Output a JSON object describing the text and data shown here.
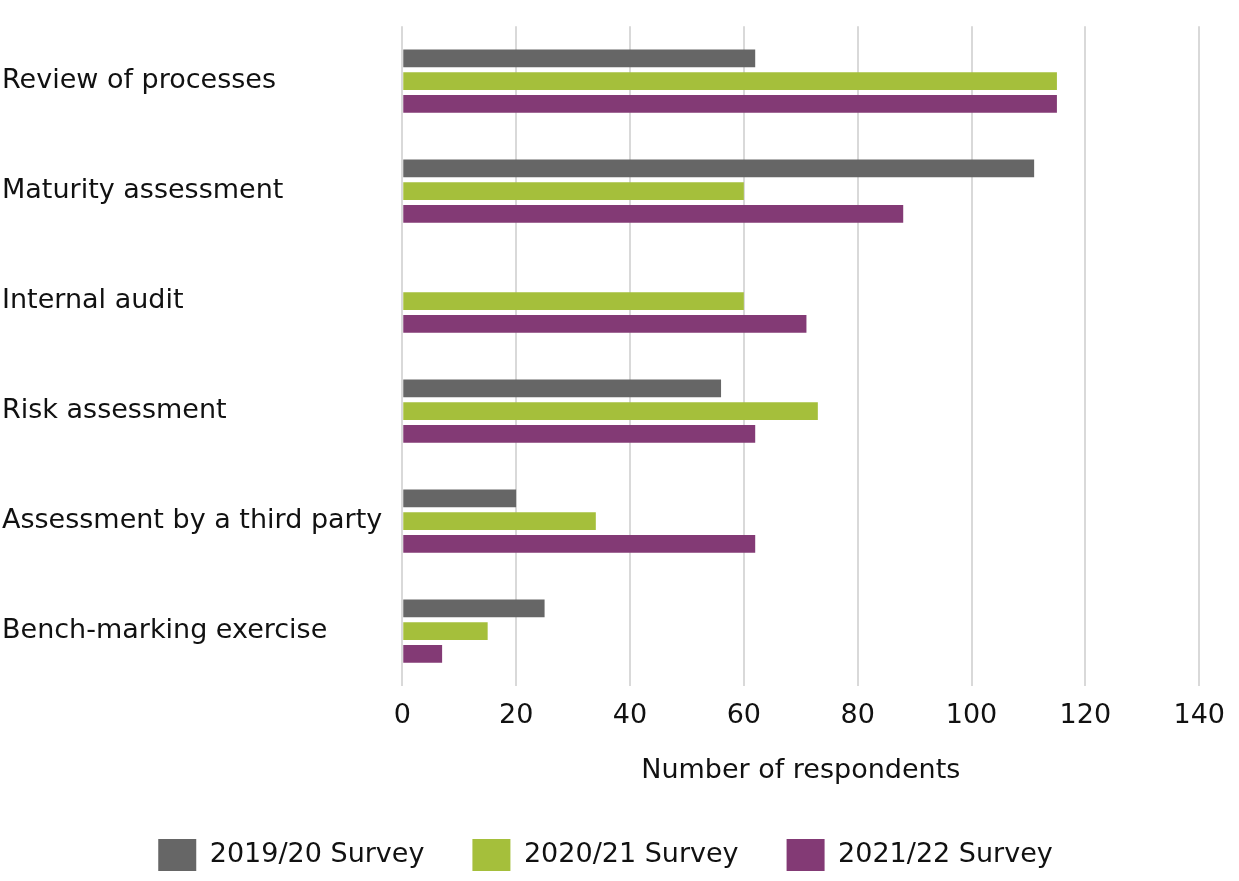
{
  "chart_data": {
    "type": "bar",
    "orientation": "horizontal",
    "xlabel": "Number of respondents",
    "categories": [
      "Review of processes",
      "Maturity assessment",
      "Internal audit",
      "Risk assessment",
      "Assessment by a third party",
      "Bench-marking exercise"
    ],
    "series": [
      {
        "name": "2019/20 Survey",
        "color": "#666666",
        "values": [
          62,
          111,
          null,
          56,
          20,
          25
        ]
      },
      {
        "name": "2020/21 Survey",
        "color": "#a5bf3b",
        "values": [
          115,
          60,
          60,
          73,
          34,
          15
        ]
      },
      {
        "name": "2021/22 Survey",
        "color": "#833a75",
        "values": [
          115,
          88,
          71,
          62,
          62,
          7
        ]
      }
    ],
    "xlim": [
      0,
      140
    ],
    "xticks": [
      0,
      20,
      40,
      60,
      80,
      100,
      120,
      140
    ],
    "grid": "x",
    "legend": "bottom"
  }
}
